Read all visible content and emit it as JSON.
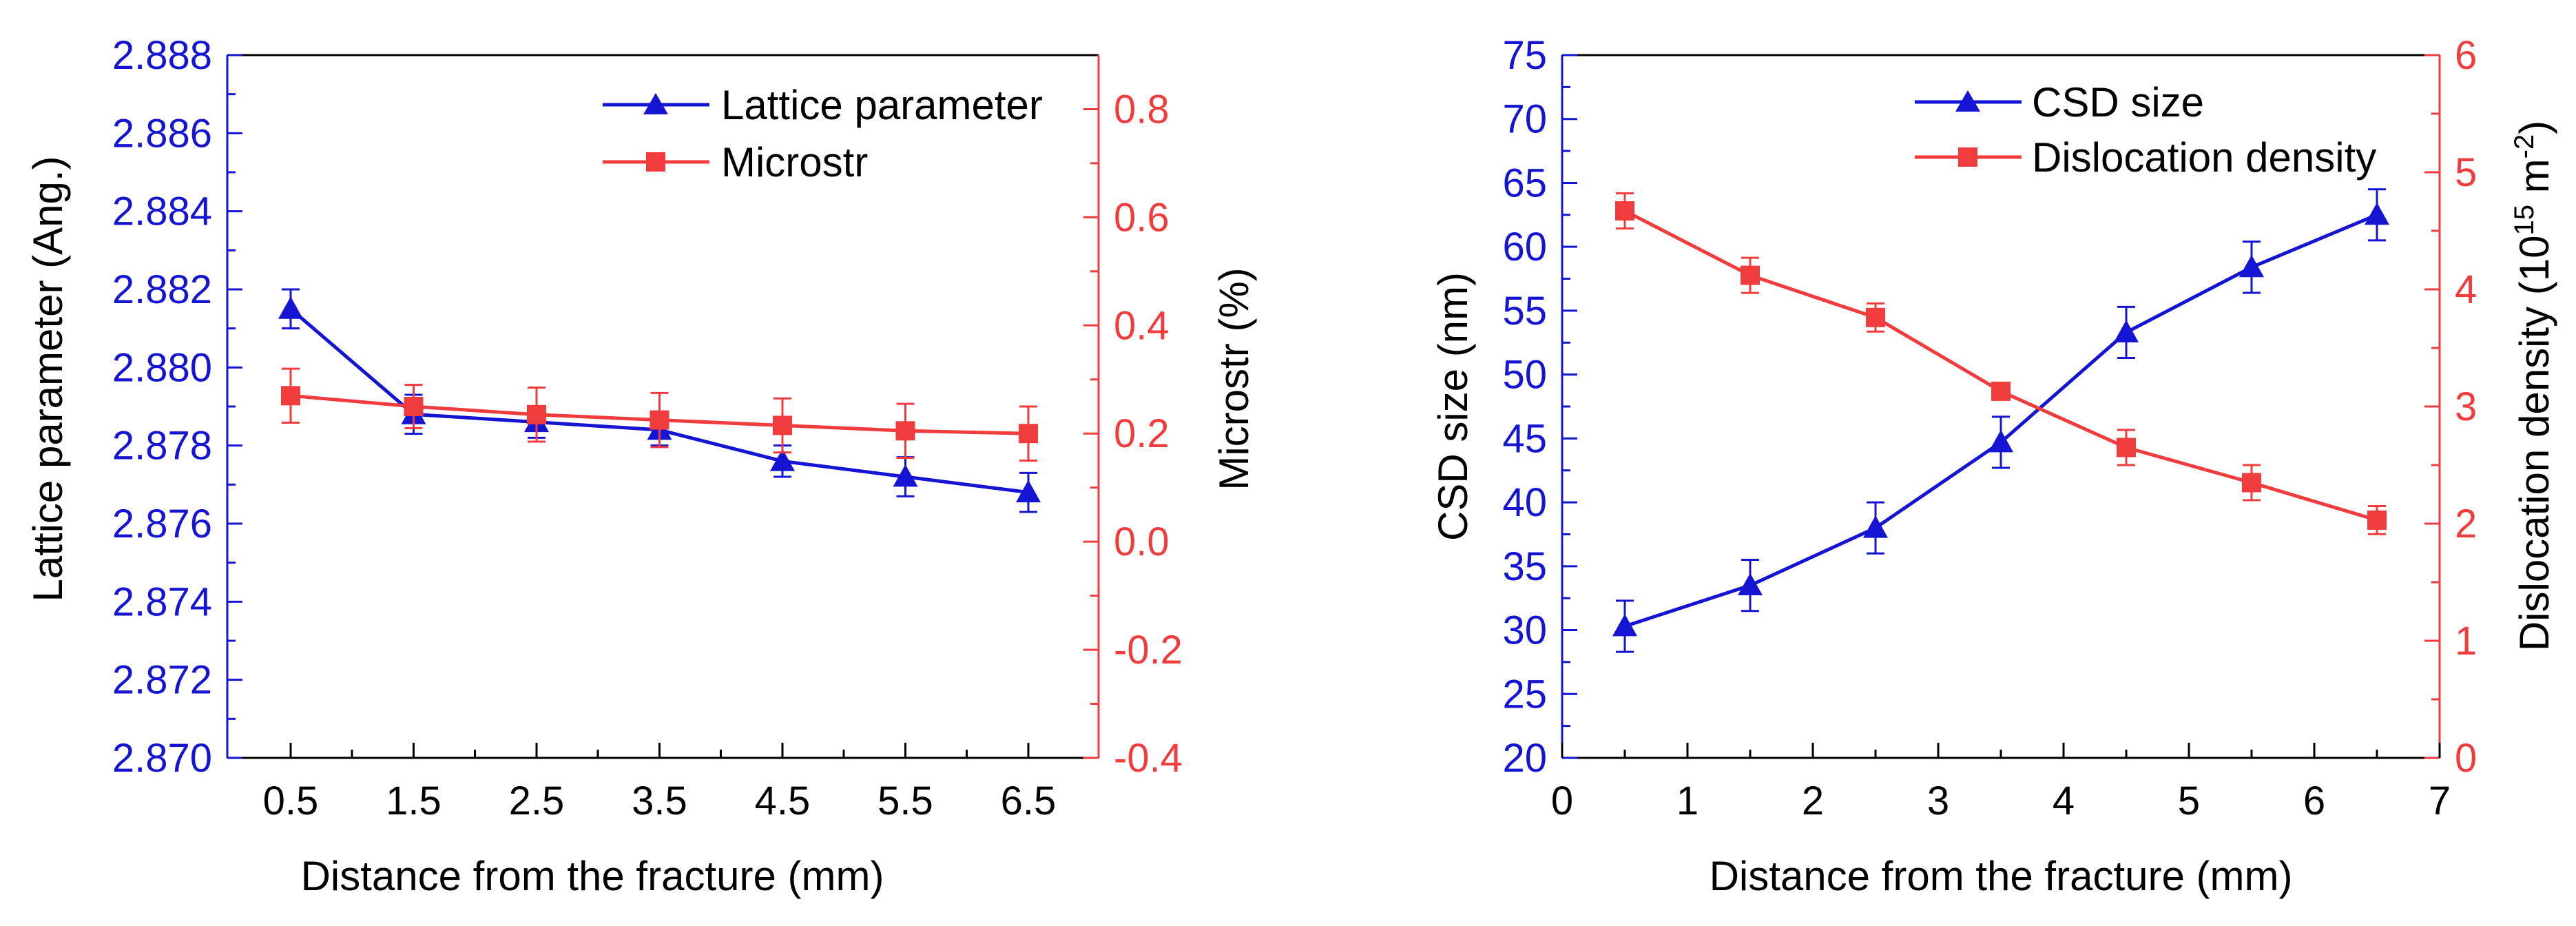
{
  "colors": {
    "blue": "#1414d2",
    "red": "#f03c3c",
    "axis": "#000000"
  },
  "chart_data": [
    {
      "type": "line",
      "xlabel": "Distance from the fracture (mm)",
      "ylabel_left": "Lattice parameter (Ang.)",
      "ylabel_right": "Microstr (%)",
      "categories": [
        "0.5",
        "1.5",
        "2.5",
        "3.5",
        "4.5",
        "5.5",
        "6.5"
      ],
      "ylim_left": [
        2.87,
        2.888
      ],
      "yticks_left": [
        "2.870",
        "2.872",
        "2.874",
        "2.876",
        "2.878",
        "2.880",
        "2.882",
        "2.884",
        "2.886",
        "2.888"
      ],
      "ylim_right": [
        -0.4,
        0.9
      ],
      "yticks_right": [
        "-0.4",
        "-0.2",
        "0.0",
        "0.2",
        "0.4",
        "0.6",
        "0.8"
      ],
      "legend_position": "top-right",
      "series": [
        {
          "name": "Lattice parameter",
          "axis": "left",
          "marker": "triangle",
          "color": "#1414d2",
          "values": [
            2.8815,
            2.8788,
            2.8786,
            2.8784,
            2.8776,
            2.8772,
            2.8768
          ],
          "errors": [
            0.0005,
            0.0005,
            0.0004,
            0.0004,
            0.0004,
            0.0005,
            0.0005
          ]
        },
        {
          "name": "Microstr",
          "axis": "right",
          "marker": "square",
          "color": "#f03c3c",
          "values": [
            0.27,
            0.25,
            0.235,
            0.225,
            0.215,
            0.205,
            0.2
          ],
          "errors": [
            0.05,
            0.04,
            0.05,
            0.05,
            0.05,
            0.05,
            0.05
          ]
        }
      ]
    },
    {
      "type": "line",
      "xlabel": "Distance from the fracture (mm)",
      "ylabel_left": "CSD size (nm)",
      "ylabel_right_main": "Dislocation density (10",
      "ylabel_right_exp1": "15",
      "ylabel_right_mid": " m",
      "ylabel_right_exp2": "-2",
      "ylabel_right_end": ")",
      "xlim": [
        0,
        7
      ],
      "xticks": [
        "0",
        "1",
        "2",
        "3",
        "4",
        "5",
        "6",
        "7"
      ],
      "ylim_left": [
        20,
        75
      ],
      "yticks_left": [
        "20",
        "25",
        "30",
        "35",
        "40",
        "45",
        "50",
        "55",
        "60",
        "65",
        "70",
        "75"
      ],
      "ylim_right": [
        0,
        6
      ],
      "yticks_right": [
        "0",
        "1",
        "2",
        "3",
        "4",
        "5",
        "6"
      ],
      "legend_position": "top-right",
      "series": [
        {
          "name": "CSD size",
          "axis": "left",
          "marker": "triangle",
          "color": "#1414d2",
          "x": [
            0.5,
            1.5,
            2.5,
            3.5,
            4.5,
            5.5,
            6.5
          ],
          "values": [
            30.3,
            33.5,
            38.0,
            44.7,
            53.3,
            58.4,
            62.5
          ],
          "errors": [
            2.0,
            2.0,
            2.0,
            2.0,
            2.0,
            2.0,
            2.0
          ]
        },
        {
          "name": "Dislocation density",
          "axis": "right",
          "marker": "square",
          "color": "#f03c3c",
          "x": [
            0.5,
            1.5,
            2.5,
            3.5,
            4.5,
            5.5,
            6.5
          ],
          "values": [
            4.67,
            4.12,
            3.76,
            3.13,
            2.65,
            2.35,
            2.03
          ],
          "errors": [
            0.15,
            0.15,
            0.12,
            0.05,
            0.15,
            0.15,
            0.12
          ]
        }
      ]
    }
  ]
}
